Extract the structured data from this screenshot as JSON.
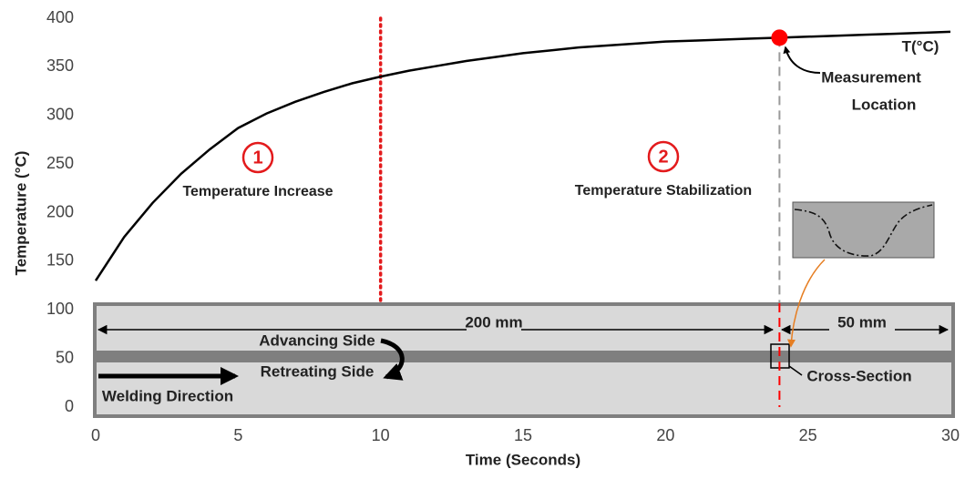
{
  "chart_data": {
    "type": "line",
    "xlabel": "Time (Seconds)",
    "ylabel": "Temperature (°C)",
    "x": [
      0,
      1,
      2,
      3,
      4,
      5,
      6,
      7,
      8,
      9,
      10,
      11,
      12,
      13,
      14,
      15,
      16,
      17,
      18,
      19,
      20,
      21,
      22,
      23,
      24,
      25,
      26,
      27,
      28,
      29,
      30
    ],
    "series": [
      {
        "name": "T(°C)",
        "color": "#000000",
        "values": [
          130,
          175,
          210,
          240,
          265,
          287,
          302,
          314,
          324,
          333,
          340,
          346,
          351,
          356,
          360,
          364,
          367,
          370,
          372,
          374,
          376,
          377,
          378,
          379,
          380,
          381,
          382,
          383,
          384,
          385,
          386
        ]
      }
    ],
    "xlim": [
      0,
      30
    ],
    "xticks": [
      0,
      5,
      10,
      15,
      20,
      25,
      30
    ],
    "ylim": [
      0,
      400
    ],
    "yticks": [
      0,
      50,
      100,
      150,
      200,
      250,
      300,
      350,
      400
    ],
    "grid": false,
    "points": [
      {
        "x": 24,
        "y": 380,
        "color": "#ff0000"
      }
    ],
    "vlines": [
      {
        "x": 10,
        "color": "#e31a1c",
        "style": "dotted"
      },
      {
        "x": 24,
        "color": "#999999",
        "style": "dashed"
      }
    ],
    "measurement_label": [
      "Measurement",
      "Location"
    ],
    "phases": [
      {
        "number": "1",
        "label": "Temperature Increase"
      },
      {
        "number": "2",
        "label": "Temperature Stabilization"
      }
    ],
    "plate": {
      "lengths": [
        "200 mm",
        "50 mm"
      ],
      "sides": [
        "Advancing Side",
        "Retreating Side"
      ],
      "direction": "Welding Direction",
      "section": "Cross-Section"
    }
  }
}
